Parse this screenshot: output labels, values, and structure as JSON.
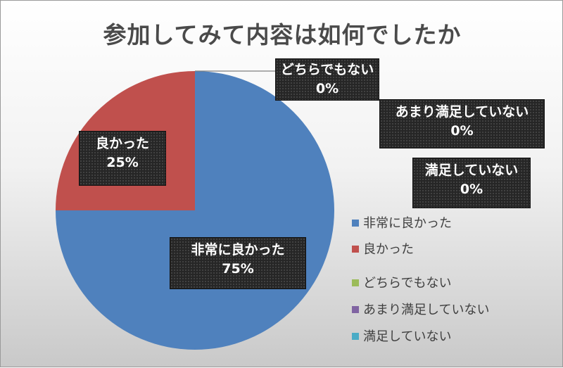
{
  "chart_data": {
    "type": "pie",
    "title": "参加してみて内容は如何でしたか",
    "categories": [
      "非常に良かった",
      "良かった",
      "どちらでもない",
      "あまり満足していない",
      "満足していない"
    ],
    "values": [
      75,
      25,
      0,
      0,
      0
    ],
    "value_labels": [
      "75%",
      "25%",
      "0%",
      "0%",
      "0%"
    ],
    "colors": [
      "#4f81bd",
      "#c0504d",
      "#9bbb59",
      "#8064a2",
      "#4bacc6"
    ],
    "legend_position": "right"
  }
}
